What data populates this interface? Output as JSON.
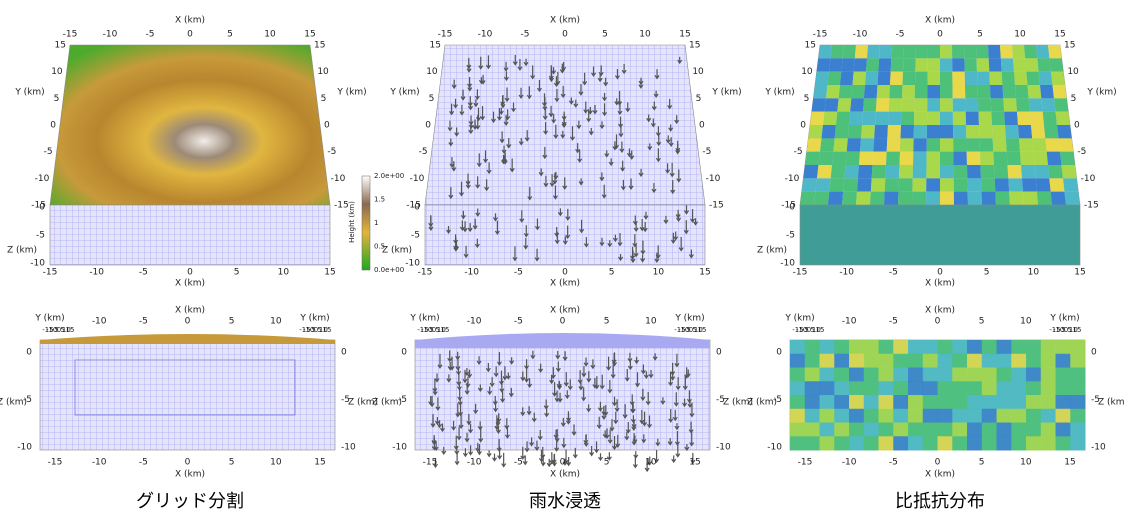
{
  "axis_labels": {
    "x": "X (km)",
    "y": "Y (km)",
    "z": "Z (km)"
  },
  "colorbar": {
    "title": "Height (km)",
    "labels": [
      "2.0e+00",
      "1.5",
      "1",
      "0.5",
      "0.0e+00"
    ]
  },
  "x_ticks": [
    -15,
    -10,
    -5,
    0,
    5,
    10,
    15
  ],
  "y_ticks": [
    15,
    10,
    5,
    0,
    -5,
    -10,
    -15
  ],
  "z_ticks": [
    0,
    -5,
    -10
  ],
  "panels": [
    {
      "caption": "グリッド分割"
    },
    {
      "caption": "雨水浸透"
    },
    {
      "caption": "比抵抗分布"
    }
  ]
}
